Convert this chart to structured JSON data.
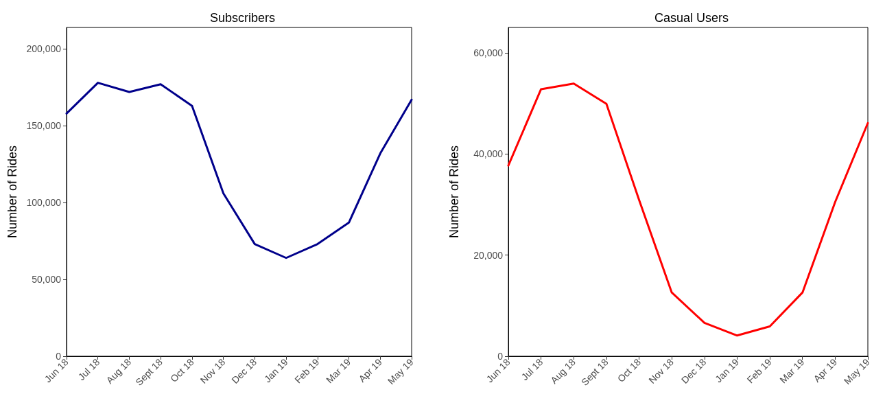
{
  "chart_data": [
    {
      "type": "line",
      "title": "Subscribers",
      "ylabel": "Number of Rides",
      "categories": [
        "Jun 18",
        "Jul 18",
        "Aug 18",
        "Sept 18",
        "Oct 18",
        "Nov 18",
        "Dec 18",
        "Jan 19",
        "Feb 19",
        "Mar 19",
        "Apr 19",
        "May 19"
      ],
      "series": [
        {
          "color": "#00008b",
          "values": [
            158000,
            178000,
            172000,
            177000,
            163000,
            106000,
            73000,
            64000,
            73000,
            87000,
            132000,
            167000
          ]
        }
      ],
      "ylim": [
        0,
        214000
      ],
      "yticks": [
        {
          "value": 0,
          "label": "0"
        },
        {
          "value": 50000,
          "label": "50,000"
        },
        {
          "value": 100000,
          "label": "100,000"
        },
        {
          "value": 150000,
          "label": "150,000"
        },
        {
          "value": 200000,
          "label": "200,000"
        }
      ],
      "grid": false,
      "marker": "none",
      "line_style": "solid"
    },
    {
      "type": "line",
      "title": "Casual Users",
      "ylabel": "Number of Rides",
      "categories": [
        "Jun 18",
        "Jul 18",
        "Aug 18",
        "Sept 18",
        "Oct 18",
        "Nov 18",
        "Dec 18",
        "Jan 19",
        "Feb 19",
        "Mar 19",
        "Apr 19",
        "May 19"
      ],
      "series": [
        {
          "color": "#ff0000",
          "values": [
            37700,
            52800,
            53900,
            49900,
            30900,
            12600,
            6600,
            4100,
            5900,
            12600,
            30500,
            46100
          ]
        }
      ],
      "ylim": [
        0,
        65000
      ],
      "yticks": [
        {
          "value": 0,
          "label": "0"
        },
        {
          "value": 20000,
          "label": "20,000"
        },
        {
          "value": 40000,
          "label": "40,000"
        },
        {
          "value": 60000,
          "label": "60,000"
        }
      ],
      "grid": false,
      "marker": "none",
      "line_style": "solid"
    }
  ]
}
